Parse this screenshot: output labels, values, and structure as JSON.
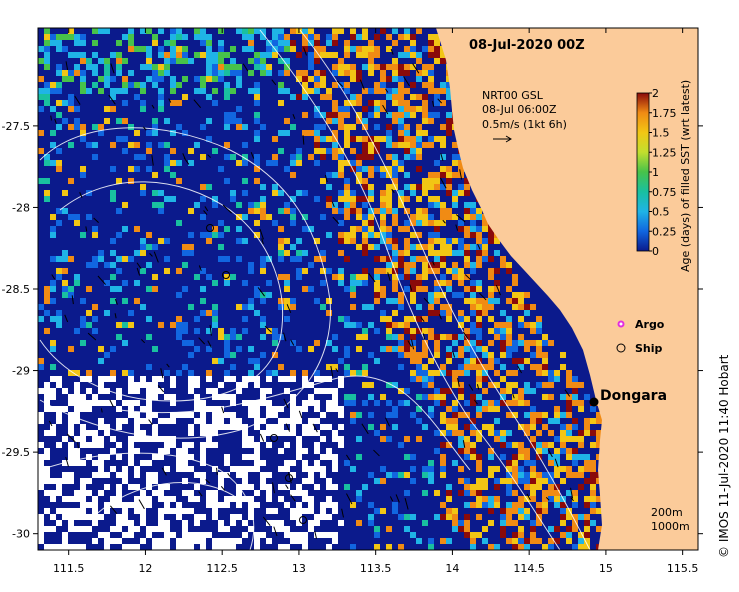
{
  "title": "08-Jul-2020 00Z",
  "product": {
    "line1": "NRT00 GSL",
    "line2": "08-Jul 06:00Z",
    "line3": "0.5m/s (1kt 6h)"
  },
  "map": {
    "lon_range": [
      111.3,
      115.6
    ],
    "lat_range": [
      -30.1,
      -26.9
    ],
    "lon_ticks": [
      "111.5",
      "12",
      "112.5",
      "13",
      "113.5",
      "14",
      "114.5",
      "15",
      "115.5"
    ],
    "lon_tick_values": [
      111.5,
      112,
      112.5,
      113,
      113.5,
      114,
      114.5,
      115,
      115.5
    ],
    "lat_ticks": [
      "-27.5",
      "-28",
      "-28.5",
      "-29",
      "-29.5",
      "-30"
    ],
    "lat_tick_values": [
      -27.5,
      -28,
      -28.5,
      -29,
      -29.5,
      -30
    ],
    "colors": {
      "ocean": "#0b1a8c",
      "land": "#fbcb9a",
      "missing": "#ffffff"
    }
  },
  "colorbar": {
    "label": "Age (days) of filled SST (wrt latest)",
    "ticks": [
      "0",
      "0.25",
      "0.5",
      "0.75",
      "1",
      "1.25",
      "1.5",
      "1.75",
      "2"
    ],
    "tick_values": [
      0,
      0.25,
      0.5,
      0.75,
      1,
      1.25,
      1.5,
      1.75,
      2
    ],
    "colors": [
      "#0b1a8c",
      "#1166e0",
      "#1fb4e6",
      "#19c0a0",
      "#47c24a",
      "#c2df2e",
      "#f2c614",
      "#f08b14",
      "#8a0a0a"
    ]
  },
  "legend": {
    "argo": "Argo",
    "ship": "Ship",
    "argo_color": "#e22ee0"
  },
  "place": {
    "name": "Dongara",
    "lon": 114.93,
    "lat": -29.25
  },
  "depth_contours": {
    "line1": "200m",
    "line2": "1000m"
  },
  "credit": "© IMOS 11-Jul-2020 11:40 Hobart"
}
